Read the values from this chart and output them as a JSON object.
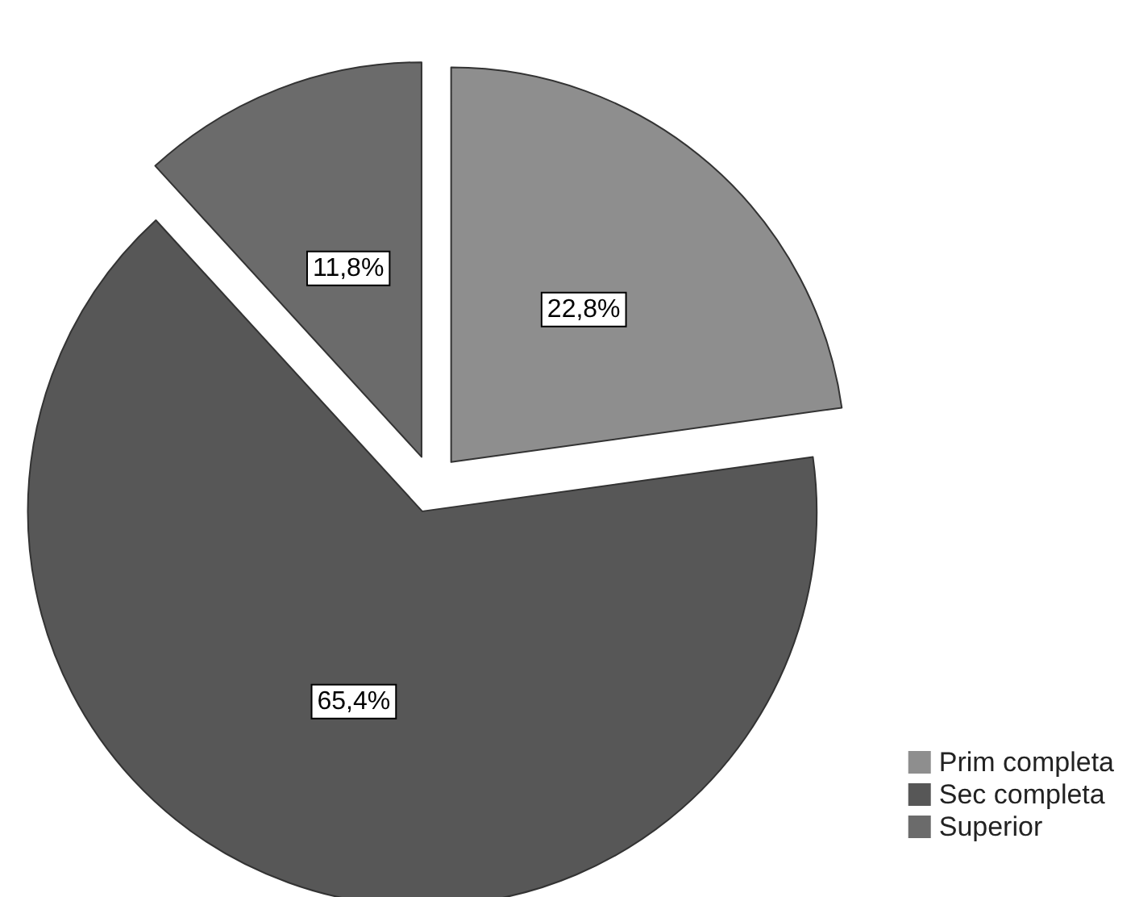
{
  "chart_data": {
    "type": "pie",
    "categories": [
      "Prim completa",
      "Sec completa",
      "Superior"
    ],
    "values": [
      22.8,
      65.4,
      11.8
    ],
    "colors": [
      "#8e8e8e",
      "#575757",
      "#6b6b6b"
    ],
    "value_labels": [
      "22,8%",
      "65,4%",
      "11,8%"
    ],
    "legend": "bottom right"
  }
}
